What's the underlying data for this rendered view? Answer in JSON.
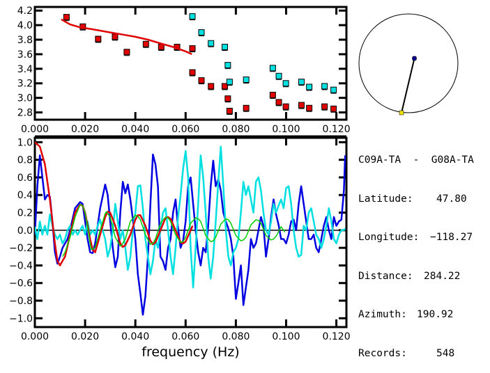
{
  "chart_data": [
    {
      "type": "scatter",
      "panel": "dispersion",
      "title": "",
      "xlabel": "",
      "ylabel": "",
      "xlim": [
        0.0,
        0.124
      ],
      "ylim": [
        2.7,
        4.25
      ],
      "xticks": [
        0.0,
        0.02,
        0.04,
        0.06,
        0.08,
        0.1,
        0.12
      ],
      "xtick_labels": [
        "0.000",
        "0.020",
        "0.040",
        "0.060",
        "0.080",
        "0.100",
        "0.120"
      ],
      "yticks": [
        2.8,
        3.0,
        3.2,
        3.4,
        3.6,
        3.8,
        4.0,
        4.2
      ],
      "ytick_labels": [
        "2.8",
        "3.0",
        "3.2",
        "3.4",
        "3.6",
        "3.8",
        "4.0",
        "4.2"
      ],
      "series": [
        {
          "name": "measured-red",
          "color": "#e00000",
          "marker": "square",
          "points": [
            [
              0.0126,
              4.11
            ],
            [
              0.0191,
              3.98
            ],
            [
              0.0252,
              3.81
            ],
            [
              0.0319,
              3.84
            ],
            [
              0.0366,
              3.63
            ],
            [
              0.0442,
              3.74
            ],
            [
              0.0503,
              3.7
            ],
            [
              0.0566,
              3.7
            ],
            [
              0.0627,
              3.68
            ],
            [
              0.0627,
              3.35
            ],
            [
              0.0663,
              3.24
            ],
            [
              0.0701,
              3.16
            ],
            [
              0.0756,
              3.16
            ],
            [
              0.0768,
              2.99
            ],
            [
              0.0775,
              2.82
            ],
            [
              0.0841,
              2.86
            ],
            [
              0.0947,
              3.04
            ],
            [
              0.0971,
              2.94
            ],
            [
              0.0999,
              2.88
            ],
            [
              0.1061,
              2.9
            ],
            [
              0.1092,
              2.86
            ],
            [
              0.1153,
              2.88
            ],
            [
              0.1189,
              2.85
            ]
          ]
        },
        {
          "name": "measured-cyan",
          "color": "#00e0e0",
          "marker": "square",
          "points": [
            [
              0.0627,
              4.12
            ],
            [
              0.0663,
              3.9
            ],
            [
              0.0701,
              3.75
            ],
            [
              0.0756,
              3.7
            ],
            [
              0.0768,
              3.45
            ],
            [
              0.0775,
              3.22
            ],
            [
              0.0841,
              3.25
            ],
            [
              0.0947,
              3.41
            ],
            [
              0.0971,
              3.3
            ],
            [
              0.0999,
              3.2
            ],
            [
              0.1061,
              3.22
            ],
            [
              0.1092,
              3.15
            ],
            [
              0.1153,
              3.16
            ],
            [
              0.1189,
              3.11
            ]
          ]
        },
        {
          "name": "fit-curve",
          "color": "#e00000",
          "type": "line",
          "x": [
            0.0105,
            0.012,
            0.014,
            0.016,
            0.018,
            0.02,
            0.025,
            0.03,
            0.035,
            0.04,
            0.045,
            0.05,
            0.055,
            0.06,
            0.0625
          ],
          "y": [
            4.08,
            4.05,
            4.01,
            3.99,
            3.97,
            3.96,
            3.93,
            3.9,
            3.87,
            3.84,
            3.8,
            3.75,
            3.7,
            3.64,
            3.6
          ]
        }
      ]
    },
    {
      "type": "line",
      "panel": "coherency",
      "title": "",
      "xlabel": "frequency (Hz)",
      "ylabel": "",
      "xlim": [
        0.0,
        0.124
      ],
      "ylim": [
        -1.1,
        1.05
      ],
      "grid": false,
      "zero_line": true,
      "xticks": [
        0.0,
        0.02,
        0.04,
        0.06,
        0.08,
        0.1,
        0.12
      ],
      "xtick_labels": [
        "0.000",
        "0.020",
        "0.040",
        "0.060",
        "0.080",
        "0.100",
        "0.120"
      ],
      "yticks": [
        -1.0,
        -0.8,
        -0.6,
        -0.4,
        -0.2,
        0.0,
        0.2,
        0.4,
        0.6,
        0.8,
        1.0
      ],
      "ytick_labels": [
        "−1.0",
        "−0.8",
        "−0.6",
        "−0.4",
        "−0.2",
        "0.0",
        "0.2",
        "0.4",
        "0.6",
        "0.8",
        "1.0"
      ],
      "series": [
        {
          "name": "real-part",
          "color": "#0000e0",
          "x": [
            0.0,
            0.001,
            0.002,
            0.003,
            0.004,
            0.005,
            0.006,
            0.007,
            0.008,
            0.009,
            0.01,
            0.011,
            0.012,
            0.013,
            0.014,
            0.016,
            0.018,
            0.019,
            0.02,
            0.021,
            0.022,
            0.023,
            0.024,
            0.026,
            0.028,
            0.029,
            0.03,
            0.031,
            0.032,
            0.033,
            0.034,
            0.035,
            0.036,
            0.037,
            0.038,
            0.04,
            0.041,
            0.042,
            0.043,
            0.044,
            0.045,
            0.046,
            0.047,
            0.048,
            0.049,
            0.05,
            0.051,
            0.052,
            0.053,
            0.054,
            0.055,
            0.056,
            0.057,
            0.058,
            0.059,
            0.06,
            0.061,
            0.062,
            0.063,
            0.064,
            0.065,
            0.066,
            0.067,
            0.068,
            0.069,
            0.07,
            0.071,
            0.072,
            0.073,
            0.074,
            0.075,
            0.076,
            0.077,
            0.078,
            0.079,
            0.08,
            0.081,
            0.082,
            0.083,
            0.084,
            0.085,
            0.086,
            0.087,
            0.088,
            0.089,
            0.09,
            0.091,
            0.092,
            0.093,
            0.094,
            0.095,
            0.096,
            0.097,
            0.098,
            0.099,
            0.1,
            0.101,
            0.102,
            0.103,
            0.104,
            0.105,
            0.106,
            0.107,
            0.108,
            0.109,
            0.11,
            0.111,
            0.112,
            0.113,
            0.114,
            0.115,
            0.116,
            0.117,
            0.118,
            0.119,
            0.12,
            0.121,
            0.122,
            0.123,
            0.1235
          ],
          "y": [
            -0.05,
            0.5,
            0.85,
            0.6,
            0.35,
            0.4,
            0.38,
            0.1,
            -0.25,
            -0.38,
            -0.3,
            -0.2,
            -0.15,
            -0.1,
            0.0,
            0.25,
            0.32,
            0.3,
            0.1,
            -0.1,
            -0.25,
            -0.26,
            -0.15,
            0.25,
            0.52,
            0.4,
            0.1,
            -0.2,
            -0.42,
            -0.3,
            0.2,
            0.55,
            0.42,
            0.52,
            0.35,
            -0.1,
            -0.5,
            -0.72,
            -0.96,
            -0.75,
            -0.3,
            0.3,
            0.86,
            0.75,
            0.5,
            -0.3,
            -0.35,
            -0.45,
            -0.2,
            -0.1,
            0.2,
            0.35,
            0.02,
            -0.2,
            -0.12,
            0.1,
            0.5,
            0.6,
            0.3,
            0.0,
            -0.25,
            -0.4,
            -0.2,
            -0.25,
            0.05,
            0.5,
            0.79,
            0.5,
            0.58,
            0.45,
            0.2,
            0.1,
            0.02,
            -0.1,
            -0.3,
            -0.78,
            -0.6,
            -0.4,
            -0.85,
            -0.65,
            -0.45,
            -0.1,
            -0.2,
            -0.15,
            0.0,
            0.15,
            0.05,
            -0.3,
            -0.1,
            0.15,
            0.35,
            0.18,
            0.06,
            -0.1,
            -0.1,
            -0.15,
            -0.05,
            0.1,
            0.12,
            0.0,
            0.3,
            0.5,
            0.3,
            0.1,
            -0.1,
            -0.1,
            -0.05,
            -0.2,
            -0.25,
            -0.1,
            0.05,
            0.15,
            0.0,
            -0.1,
            0.15,
            0.05,
            0.1,
            0.12,
            0.45,
            0.85
          ]
        },
        {
          "name": "imag-part",
          "color": "#00e0e0",
          "x": [
            0.0,
            0.001,
            0.002,
            0.003,
            0.004,
            0.005,
            0.006,
            0.007,
            0.008,
            0.009,
            0.01,
            0.011,
            0.012,
            0.013,
            0.014,
            0.015,
            0.016,
            0.017,
            0.018,
            0.019,
            0.02,
            0.021,
            0.022,
            0.023,
            0.024,
            0.025,
            0.026,
            0.027,
            0.028,
            0.029,
            0.03,
            0.031,
            0.032,
            0.033,
            0.034,
            0.035,
            0.036,
            0.037,
            0.038,
            0.039,
            0.04,
            0.041,
            0.042,
            0.043,
            0.044,
            0.045,
            0.046,
            0.047,
            0.048,
            0.049,
            0.05,
            0.051,
            0.052,
            0.053,
            0.054,
            0.055,
            0.056,
            0.057,
            0.058,
            0.059,
            0.06,
            0.061,
            0.062,
            0.063,
            0.064,
            0.065,
            0.066,
            0.067,
            0.068,
            0.069,
            0.07,
            0.071,
            0.072,
            0.073,
            0.074,
            0.075,
            0.076,
            0.077,
            0.078,
            0.079,
            0.08,
            0.081,
            0.082,
            0.083,
            0.084,
            0.085,
            0.086,
            0.087,
            0.088,
            0.089,
            0.09,
            0.091,
            0.092,
            0.093,
            0.094,
            0.095,
            0.096,
            0.097,
            0.098,
            0.099,
            0.1,
            0.101,
            0.102,
            0.103,
            0.104,
            0.105,
            0.106,
            0.107,
            0.108,
            0.109,
            0.11,
            0.111,
            0.112,
            0.113,
            0.114,
            0.115,
            0.116,
            0.117,
            0.118,
            0.119,
            0.12,
            0.121,
            0.122,
            0.123,
            0.1235
          ],
          "y": [
            0.04,
            -0.1,
            0.1,
            -0.05,
            0.05,
            -0.05,
            0.18,
            0.05,
            -0.05,
            -0.1,
            -0.05,
            -0.15,
            -0.1,
            0.0,
            0.05,
            -0.05,
            0.0,
            -0.05,
            0.0,
            0.05,
            -0.05,
            0.1,
            -0.05,
            0.0,
            -0.05,
            0.05,
            0.12,
            0.0,
            -0.1,
            -0.3,
            -0.2,
            0.0,
            0.3,
            0.1,
            -0.1,
            0.0,
            -0.2,
            -0.45,
            -0.3,
            0.0,
            0.2,
            0.5,
            0.51,
            0.25,
            -0.1,
            -0.3,
            -0.5,
            -0.35,
            -0.1,
            -0.2,
            0.0,
            0.2,
            0.25,
            0.0,
            -0.3,
            -0.5,
            -0.2,
            0.15,
            0.4,
            0.7,
            0.9,
            0.6,
            -0.2,
            -0.65,
            -0.2,
            0.3,
            0.85,
            0.6,
            0.2,
            -0.3,
            -0.55,
            -0.3,
            0.1,
            0.55,
            0.95,
            0.5,
            0.0,
            -0.3,
            -0.4,
            -0.25,
            -0.2,
            -0.1,
            0.2,
            0.55,
            0.4,
            0.5,
            0.35,
            0.2,
            0.55,
            0.6,
            0.45,
            0.2,
            0.0,
            -0.05,
            0.1,
            0.3,
            0.2,
            0.28,
            0.35,
            0.25,
            0.48,
            0.5,
            0.3,
            0.0,
            -0.2,
            -0.3,
            -0.28,
            0.05,
            0.0,
            0.2,
            0.25,
            0.1,
            -0.05,
            -0.1,
            -0.2,
            -0.1,
            0.05,
            0.25,
            0.1,
            -0.1,
            -0.15,
            -0.05,
            0.0,
            0.0,
            0.02
          ]
        },
        {
          "name": "theoretical-red",
          "color": "#e00000",
          "x": [
            0.0,
            0.002,
            0.004,
            0.006,
            0.008,
            0.009,
            0.01,
            0.012,
            0.014,
            0.016,
            0.018,
            0.019,
            0.02,
            0.022,
            0.023,
            0.024,
            0.026,
            0.028,
            0.029,
            0.03,
            0.032,
            0.034,
            0.035,
            0.036,
            0.038,
            0.04,
            0.041,
            0.042,
            0.044,
            0.046,
            0.047,
            0.048,
            0.05,
            0.052,
            0.053,
            0.054,
            0.056,
            0.058,
            0.059,
            0.06,
            0.062,
            0.0628
          ],
          "y": [
            1.0,
            0.95,
            0.75,
            0.35,
            -0.15,
            -0.35,
            -0.4,
            -0.3,
            -0.05,
            0.2,
            0.29,
            0.28,
            0.2,
            -0.1,
            -0.22,
            -0.25,
            -0.05,
            0.15,
            0.21,
            0.2,
            0.05,
            -0.15,
            -0.19,
            -0.17,
            -0.05,
            0.12,
            0.17,
            0.17,
            0.05,
            -0.12,
            -0.16,
            -0.14,
            0.0,
            0.14,
            0.15,
            0.13,
            0.0,
            -0.14,
            -0.15,
            -0.13,
            0.0,
            0.05
          ]
        },
        {
          "name": "theoretical-green",
          "color": "#00d000",
          "x": [
            0.011,
            0.012,
            0.014,
            0.016,
            0.018,
            0.019,
            0.02,
            0.022,
            0.0225,
            0.024,
            0.026,
            0.028,
            0.0285,
            0.03,
            0.032,
            0.034,
            0.0345,
            0.036,
            0.038,
            0.04,
            0.041,
            0.042,
            0.044,
            0.046,
            0.047,
            0.048,
            0.05,
            0.052,
            0.053,
            0.054,
            0.056,
            0.058,
            0.059,
            0.06,
            0.062,
            0.064,
            0.065,
            0.066,
            0.068,
            0.07,
            0.071,
            0.072,
            0.074,
            0.076,
            0.077,
            0.078,
            0.08,
            0.082,
            0.083,
            0.084,
            0.086,
            0.088,
            0.089,
            0.09,
            0.092,
            0.094,
            0.095,
            0.096,
            0.098,
            0.0995
          ],
          "y": [
            -0.3,
            -0.25,
            -0.08,
            0.15,
            0.29,
            0.28,
            0.2,
            -0.15,
            -0.22,
            -0.2,
            0.0,
            0.19,
            0.21,
            0.15,
            -0.08,
            -0.18,
            -0.17,
            -0.1,
            0.1,
            0.17,
            0.16,
            0.12,
            -0.05,
            -0.16,
            -0.15,
            -0.1,
            0.08,
            0.15,
            0.14,
            0.1,
            -0.05,
            -0.14,
            -0.13,
            -0.08,
            0.08,
            0.14,
            0.13,
            0.1,
            -0.06,
            -0.13,
            -0.12,
            -0.08,
            0.07,
            0.13,
            0.12,
            0.08,
            -0.06,
            -0.12,
            -0.11,
            -0.08,
            0.06,
            0.12,
            0.11,
            0.08,
            -0.06,
            -0.11,
            -0.1,
            -0.07,
            0.04,
            -0.02
          ]
        }
      ]
    }
  ],
  "map": {
    "circle_color": "#000000",
    "station1_color": "#00008b",
    "station2_color": "#f0e000",
    "station1_offset": [
      0.12,
      0.1
    ],
    "station2_offset": [
      -0.14,
      -1.0
    ]
  },
  "info": {
    "station_pair": "C09A-TA  -  G08A-TA",
    "rows": [
      {
        "label": "Latitude:",
        "value": "47.80"
      },
      {
        "label": "Longitude:",
        "value": "−118.27"
      },
      {
        "label": "Distance:",
        "value": "284.22"
      },
      {
        "label": "Azimuth:",
        "value": "190.92"
      },
      {
        "label": "Records:",
        "value": "548"
      }
    ]
  }
}
